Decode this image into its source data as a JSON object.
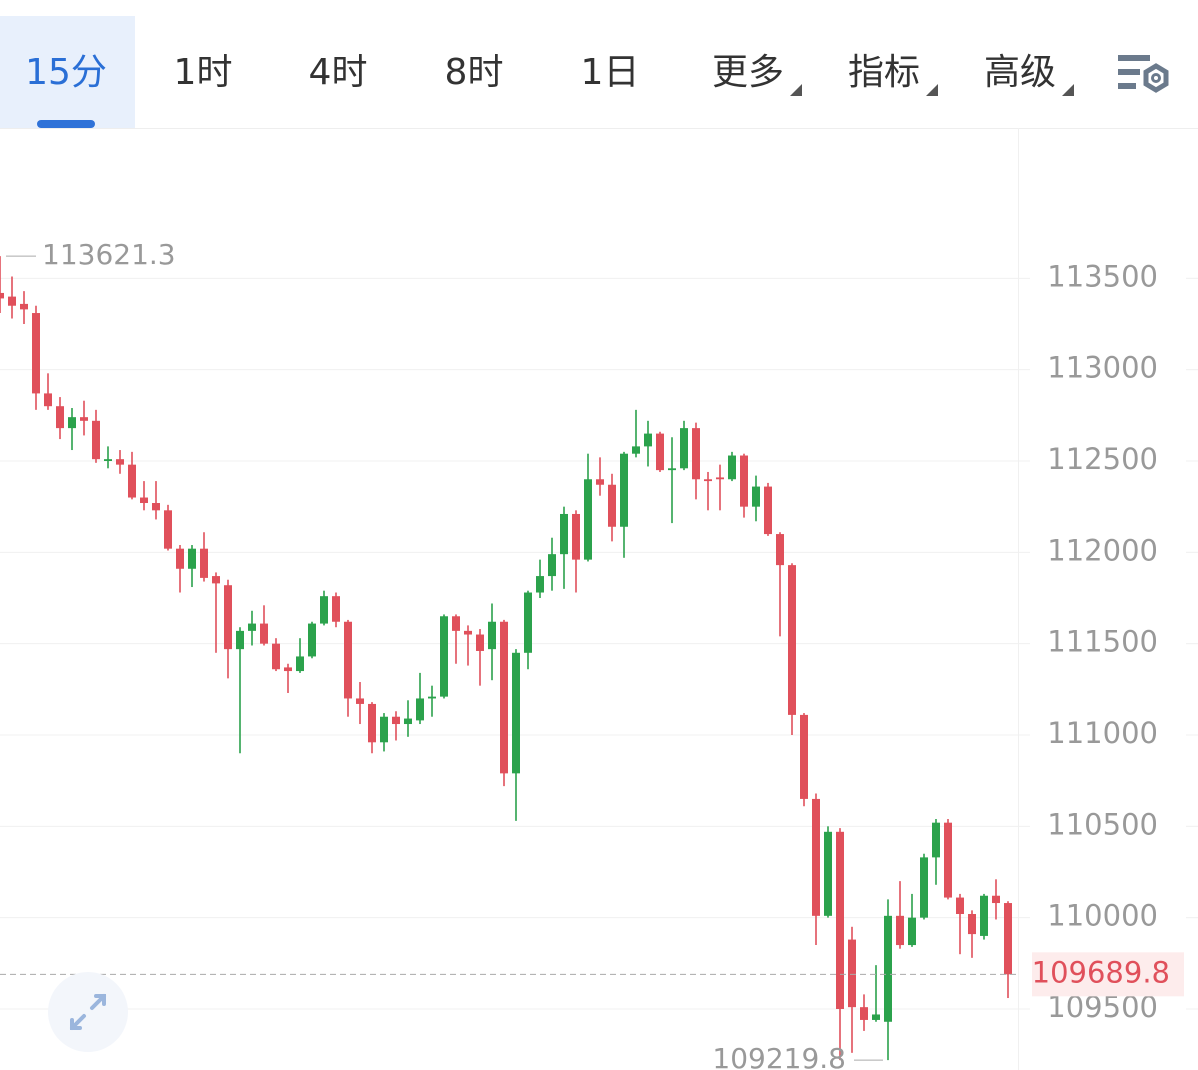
{
  "tabs": [
    "15分",
    "1时",
    "4时",
    "8时",
    "1日",
    "更多",
    "指标",
    "高级"
  ],
  "active_tab": 0,
  "chart_data": {
    "type": "candlestick",
    "up_color": "#2ba24c",
    "down_color": "#e0505b",
    "ylim": [
      109166,
      114323
    ],
    "yticks": [
      109500,
      110000,
      110500,
      111000,
      111500,
      112000,
      112500,
      113000,
      113500
    ],
    "grid": true,
    "open": [
      113420,
      113400,
      113360,
      113310,
      112870,
      112800,
      112680,
      112740,
      112720,
      112500,
      112510,
      112480,
      112300,
      112270,
      112230,
      112020,
      111910,
      112020,
      111870,
      111820,
      111470,
      111570,
      111610,
      111500,
      111370,
      111350,
      111430,
      111610,
      111760,
      111620,
      111200,
      111170,
      110960,
      111100,
      111060,
      111080,
      111200,
      111210,
      111650,
      111570,
      111550,
      111470,
      111620,
      110790,
      111450,
      111780,
      111870,
      111990,
      112210,
      111960,
      112400,
      112370,
      112140,
      112540,
      112580,
      112650,
      112450,
      112460,
      112680,
      112400,
      112410,
      112400,
      112530,
      112250,
      112360,
      112100,
      111930,
      111110,
      110650,
      110010,
      110470,
      109880,
      109510,
      109440,
      109430,
      110010,
      109850,
      110000,
      110330,
      110520,
      110110,
      110020,
      109900,
      110120,
      110080
    ],
    "high": [
      113621.3,
      113510,
      113430,
      113350,
      112980,
      112850,
      112790,
      112830,
      112780,
      112580,
      112560,
      112550,
      112390,
      112390,
      112260,
      112040,
      112040,
      112110,
      111890,
      111850,
      111590,
      111680,
      111710,
      111530,
      111390,
      111530,
      111620,
      111790,
      111780,
      111630,
      111290,
      111180,
      111120,
      111130,
      111190,
      111340,
      111270,
      111660,
      111660,
      111600,
      111580,
      111720,
      111630,
      111470,
      111790,
      111960,
      112080,
      112250,
      112230,
      112540,
      112520,
      112430,
      112550,
      112780,
      112720,
      112660,
      112630,
      112720,
      112710,
      112440,
      112480,
      112550,
      112540,
      112420,
      112380,
      112110,
      111940,
      111120,
      110680,
      110500,
      110490,
      109950,
      109580,
      109740,
      110100,
      110200,
      110130,
      110350,
      110540,
      110540,
      110130,
      110040,
      110130,
      110210,
      110090
    ],
    "low": [
      113310,
      113280,
      113250,
      112780,
      112780,
      112620,
      112560,
      112640,
      112490,
      112460,
      112430,
      112290,
      112230,
      112180,
      112010,
      111780,
      111810,
      111840,
      111450,
      111310,
      110900,
      111490,
      111490,
      111350,
      111230,
      111340,
      111420,
      111600,
      111590,
      111100,
      111060,
      110900,
      110910,
      110970,
      110990,
      111060,
      111100,
      111200,
      111390,
      111380,
      111270,
      111300,
      110720,
      110530,
      111360,
      111750,
      111790,
      111800,
      111780,
      111950,
      112310,
      112060,
      111970,
      112520,
      112470,
      112440,
      112160,
      112450,
      112290,
      112230,
      112230,
      112390,
      112190,
      112170,
      112090,
      111540,
      111000,
      110610,
      109850,
      110000,
      109220,
      109260,
      109380,
      109430,
      109219.8,
      109830,
      109840,
      109990,
      110180,
      110100,
      109800,
      109780,
      109880,
      109990,
      109560
    ],
    "close": [
      113390,
      113350,
      113330,
      112870,
      112800,
      112680,
      112740,
      112720,
      112510,
      112510,
      112480,
      112300,
      112270,
      112230,
      112020,
      111910,
      112020,
      111860,
      111830,
      111470,
      111570,
      111610,
      111500,
      111360,
      111350,
      111430,
      111610,
      111760,
      111620,
      111200,
      111170,
      110960,
      111100,
      111060,
      111090,
      111200,
      111210,
      111650,
      111570,
      111550,
      111460,
      111620,
      110790,
      111450,
      111780,
      111870,
      111990,
      112210,
      111960,
      112400,
      112370,
      112140,
      112540,
      112580,
      112650,
      112450,
      112460,
      112680,
      112400,
      112390,
      112400,
      112530,
      112250,
      112360,
      112100,
      111930,
      111110,
      110650,
      110010,
      110470,
      109500,
      109510,
      109440,
      109470,
      110010,
      109850,
      110000,
      110330,
      110520,
      110110,
      110020,
      109910,
      110120,
      110080,
      109689.8
    ]
  }
}
